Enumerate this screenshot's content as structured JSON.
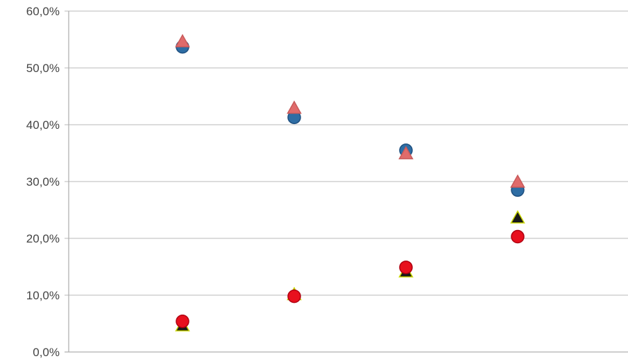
{
  "chart_data": {
    "type": "scatter",
    "title": "",
    "xlabel": "",
    "ylabel": "",
    "ylim": [
      0,
      0.6
    ],
    "y_tick_labels": [
      "0,0%",
      "10,0%",
      "20,0%",
      "30,0%",
      "40,0%",
      "50,0%",
      "60,0%"
    ],
    "y_ticks": [
      0,
      0.1,
      0.2,
      0.3,
      0.4,
      0.5,
      0.6
    ],
    "x": [
      1,
      2,
      3,
      4
    ],
    "xlim": [
      0,
      5
    ],
    "grid": "horizontal",
    "legend": "none",
    "series": [
      {
        "marker": "circle",
        "color": "#2e6da4",
        "outline": "#1f5080",
        "values": [
          0.537,
          0.413,
          0.355,
          0.285
        ]
      },
      {
        "marker": "triangle",
        "color": "#e06b6b",
        "outline": "#c85a5a",
        "values": [
          0.545,
          0.428,
          0.348,
          0.298
        ]
      },
      {
        "marker": "triangle",
        "color": "#1a1a1a",
        "outline": "#c8d400",
        "values": [
          0.045,
          0.1,
          0.14,
          0.235
        ]
      },
      {
        "marker": "circle",
        "color": "#e8101e",
        "outline": "#b00010",
        "values": [
          0.054,
          0.098,
          0.149,
          0.203
        ]
      }
    ]
  }
}
